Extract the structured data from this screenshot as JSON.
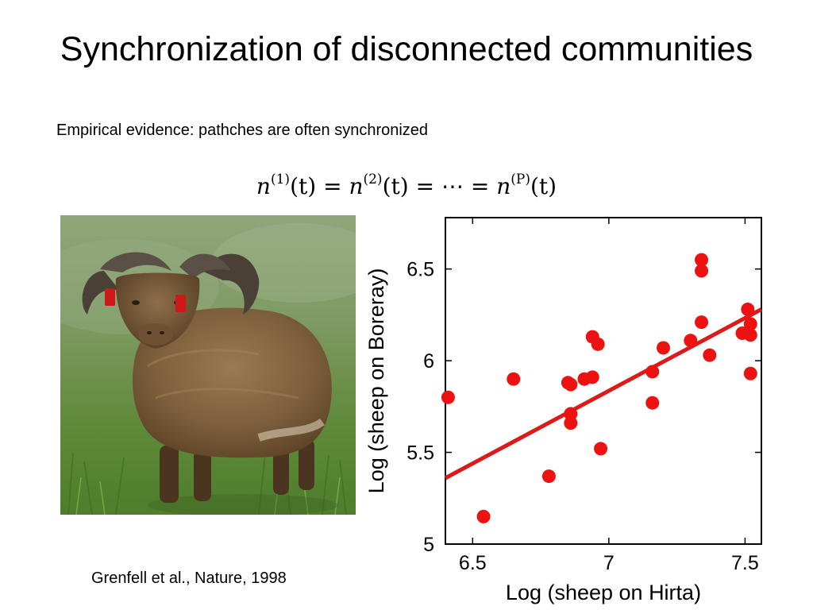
{
  "slide": {
    "title": "Synchronization of disconnected communities",
    "subtitle": "Empirical evidence: pathches are often synchronized",
    "formula": {
      "lhs_var": "n",
      "terms": [
        {
          "sup": "(1)",
          "arg": "(t)"
        },
        {
          "sup": "(2)",
          "arg": "(t)"
        },
        {
          "sup": "(P)",
          "arg": "(t)"
        }
      ],
      "equals": " = ",
      "ellipsis": "⋯"
    },
    "citation": "Grenfell et al., Nature, 1998"
  },
  "colors": {
    "points": "#ee1111",
    "trend_line": "#dd1a1a"
  },
  "chart_data": {
    "type": "scatter",
    "xlabel": "Log (sheep on Hirta)",
    "ylabel": "Log (sheep on Boreray)",
    "xlim": [
      6.4,
      7.56
    ],
    "ylim": [
      5.0,
      6.78
    ],
    "xticks": [
      6.5,
      7,
      7.5
    ],
    "xtick_labels": [
      "6.5",
      "7",
      "7.5"
    ],
    "yticks": [
      5,
      5.5,
      6,
      6.5
    ],
    "ytick_labels": [
      "5",
      "5.5",
      "6",
      "6.5"
    ],
    "grid": false,
    "legend": "none",
    "points": [
      {
        "x": 6.41,
        "y": 5.8
      },
      {
        "x": 6.54,
        "y": 5.15
      },
      {
        "x": 6.65,
        "y": 5.9
      },
      {
        "x": 6.78,
        "y": 5.37
      },
      {
        "x": 6.85,
        "y": 5.88
      },
      {
        "x": 6.86,
        "y": 5.87
      },
      {
        "x": 6.86,
        "y": 5.71
      },
      {
        "x": 6.86,
        "y": 5.66
      },
      {
        "x": 6.91,
        "y": 5.9
      },
      {
        "x": 6.94,
        "y": 5.91
      },
      {
        "x": 6.94,
        "y": 6.13
      },
      {
        "x": 6.96,
        "y": 6.09
      },
      {
        "x": 6.97,
        "y": 5.52
      },
      {
        "x": 7.16,
        "y": 5.94
      },
      {
        "x": 7.16,
        "y": 5.77
      },
      {
        "x": 7.2,
        "y": 6.07
      },
      {
        "x": 7.3,
        "y": 6.11
      },
      {
        "x": 7.34,
        "y": 6.55
      },
      {
        "x": 7.34,
        "y": 6.49
      },
      {
        "x": 7.34,
        "y": 6.21
      },
      {
        "x": 7.37,
        "y": 6.03
      },
      {
        "x": 7.49,
        "y": 6.15
      },
      {
        "x": 7.51,
        "y": 6.28
      },
      {
        "x": 7.52,
        "y": 6.2
      },
      {
        "x": 7.52,
        "y": 6.14
      },
      {
        "x": 7.52,
        "y": 5.93
      }
    ],
    "trend_line": {
      "x": [
        6.4,
        7.56
      ],
      "y": [
        5.36,
        6.28
      ]
    }
  }
}
